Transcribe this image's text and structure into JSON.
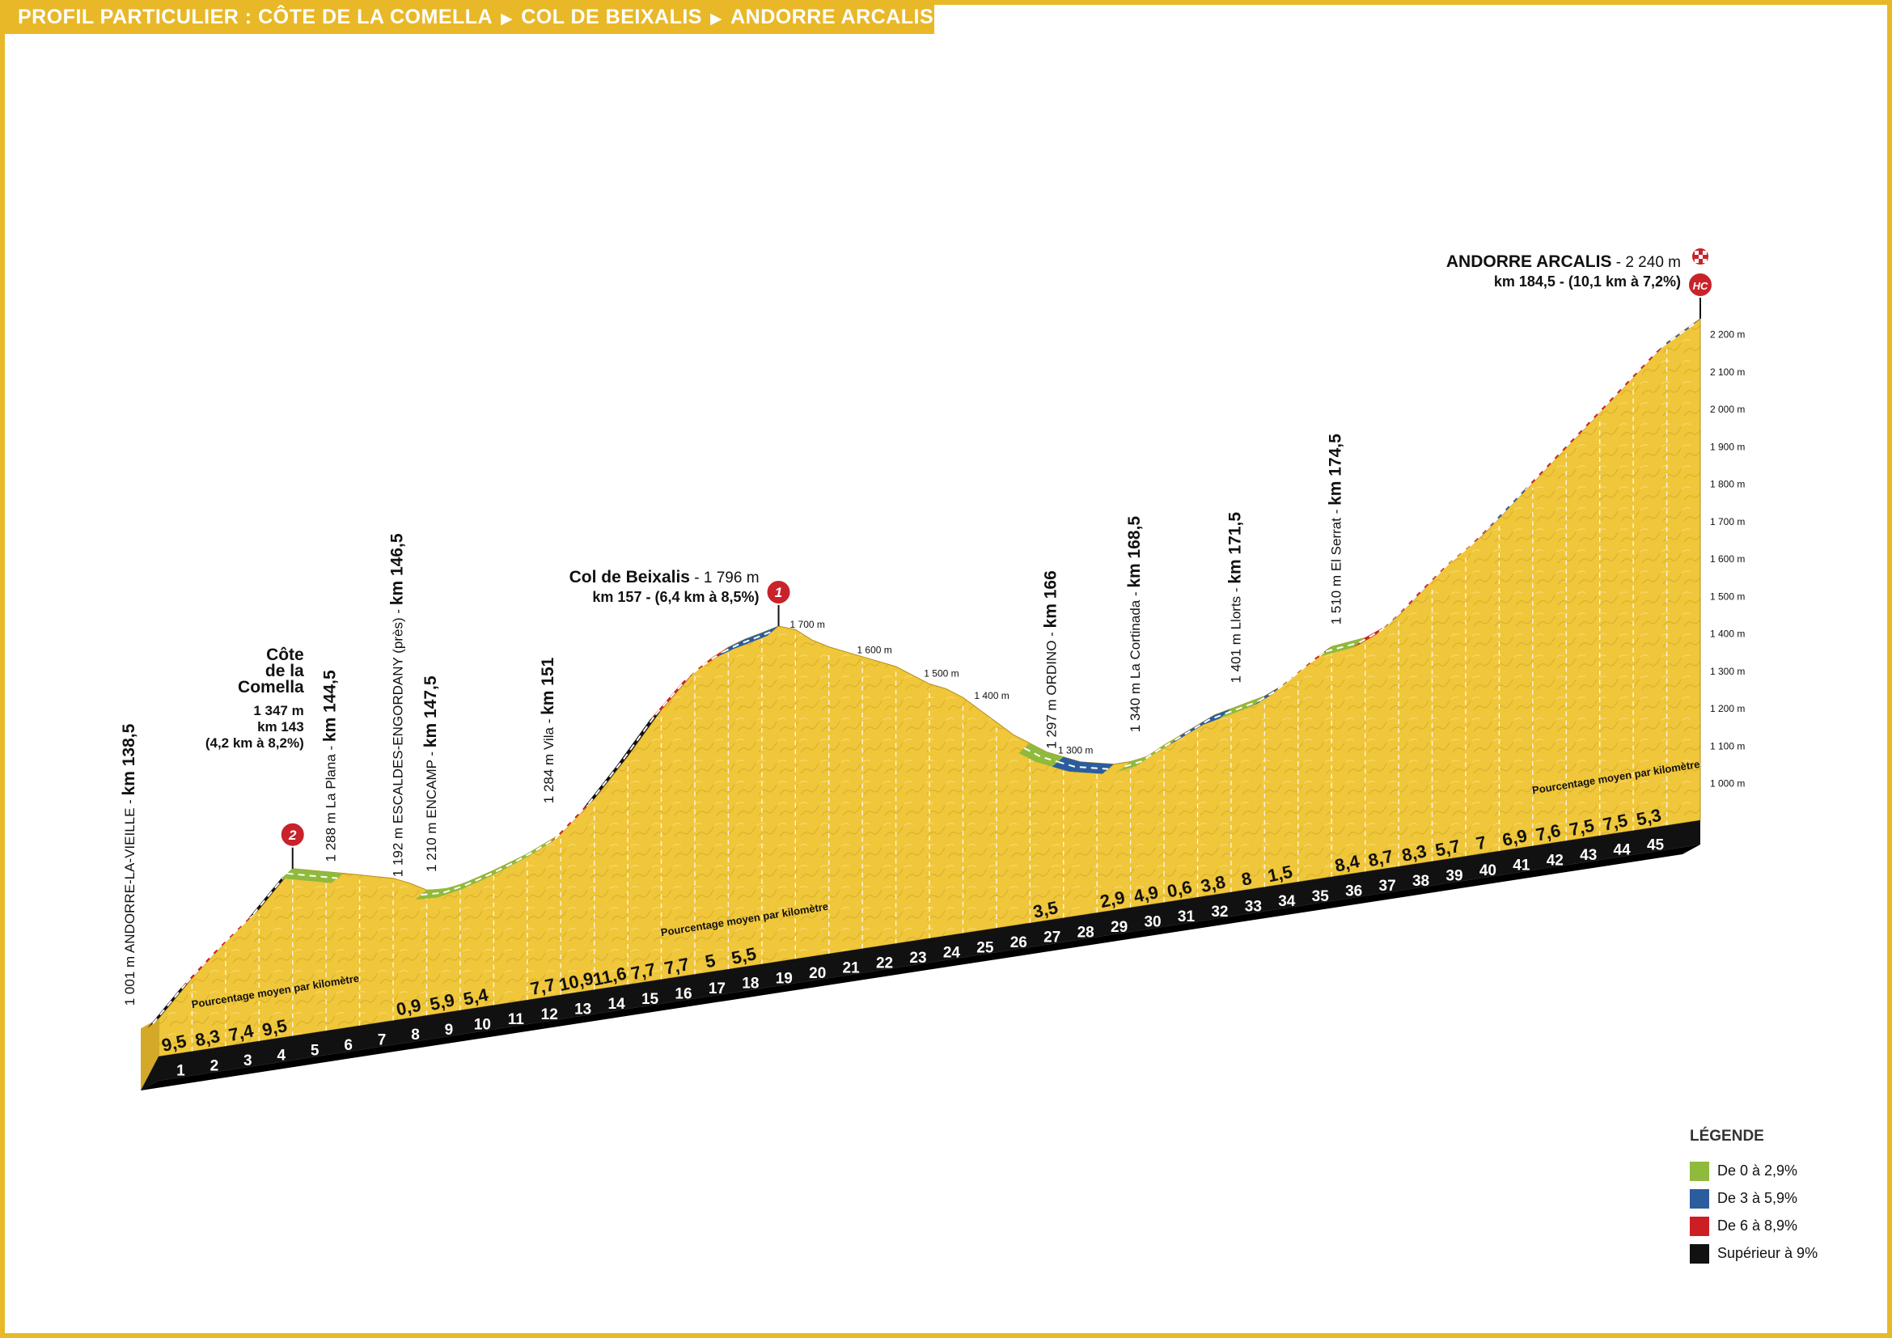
{
  "header": {
    "prefix": "PROFIL PARTICULIER :",
    "parts": [
      "CÔTE DE LA COMELLA",
      "COL DE BEIXALIS",
      "ANDORRE ARCALIS"
    ]
  },
  "colors": {
    "frame": "#e8b829",
    "terrain": "#f0c63a",
    "terrain_dark": "#c9a224",
    "green": "#8fba3c",
    "blue": "#2b5d9e",
    "red": "#cc1f24",
    "black": "#111111",
    "badge": "#c8232b"
  },
  "chart_data": {
    "type": "area",
    "x": [
      0,
      0.5,
      1,
      1.5,
      2,
      2.5,
      3,
      3.5,
      4,
      4.5,
      5,
      5.5,
      6,
      6.5,
      7,
      7.5,
      8,
      8.5,
      9,
      9.5,
      10,
      10.5,
      11,
      11.5,
      12,
      12.5,
      13,
      13.5,
      14,
      14.5,
      15,
      15.5,
      16,
      16.5,
      17,
      17.5,
      18,
      18.5,
      19,
      19.5,
      20,
      20.5,
      21,
      21.5,
      22,
      22.5,
      23,
      23.5,
      24,
      24.5,
      25,
      25.5,
      26,
      26.5,
      27,
      27.5,
      28,
      28.5,
      29,
      29.5,
      30,
      30.5,
      31,
      31.5,
      32,
      32.5,
      33,
      33.5,
      34,
      34.5,
      35,
      35.5,
      36,
      36.5,
      37,
      37.5,
      38,
      38.5,
      39,
      39.5,
      40,
      40.5,
      41,
      41.5,
      42,
      42.5,
      43,
      43.5,
      44,
      44.5,
      45,
      45.5,
      46
    ],
    "y": [
      1001,
      1048,
      1095,
      1137,
      1178,
      1215,
      1252,
      1300,
      1347,
      1336,
      1325,
      1314,
      1303,
      1291,
      1280,
      1260,
      1235,
      1230,
      1235,
      1247,
      1260,
      1275,
      1290,
      1310,
      1330,
      1370,
      1410,
      1460,
      1510,
      1565,
      1620,
      1665,
      1710,
      1738,
      1760,
      1775,
      1785,
      1796,
      1780,
      1745,
      1720,
      1700,
      1680,
      1660,
      1640,
      1610,
      1580,
      1560,
      1530,
      1490,
      1450,
      1410,
      1380,
      1350,
      1330,
      1310,
      1300,
      1290,
      1290,
      1297,
      1320,
      1340,
      1360,
      1380,
      1390,
      1400,
      1410,
      1430,
      1460,
      1490,
      1515,
      1520,
      1525,
      1540,
      1570,
      1610,
      1650,
      1690,
      1720,
      1750,
      1790,
      1830,
      1870,
      1910,
      1950,
      1990,
      2030,
      2070,
      2110,
      2150,
      2190,
      2215,
      2240
    ],
    "ylim": [
      900,
      2300
    ],
    "xlim": [
      0,
      46
    ],
    "y_axis_ticks": [
      "1 000 m",
      "1 100 m",
      "1 200 m",
      "1 300 m",
      "1 400 m",
      "1 500 m",
      "1 600 m",
      "1 700 m",
      "1 800 m",
      "1 900 m",
      "2 000 m",
      "2 100 m",
      "2 200 m"
    ],
    "y_axis_tick_values": [
      1000,
      1100,
      1200,
      1300,
      1400,
      1500,
      1600,
      1700,
      1800,
      1900,
      2000,
      2100,
      2200
    ],
    "inner_altitudes": [
      {
        "x": 18.5,
        "label": "1 700 m"
      },
      {
        "x": 20.5,
        "label": "1 600 m"
      },
      {
        "x": 22.5,
        "label": "1 500 m"
      },
      {
        "x": 24,
        "label": "1 400 m"
      },
      {
        "x": 26.5,
        "label": "1 300 m"
      }
    ],
    "km_labels": [
      "1",
      "2",
      "3",
      "4",
      "5",
      "6",
      "7",
      "8",
      "9",
      "10",
      "11",
      "12",
      "13",
      "14",
      "15",
      "16",
      "17",
      "18",
      "19",
      "20",
      "21",
      "22",
      "23",
      "24",
      "25",
      "26",
      "27",
      "28",
      "29",
      "30",
      "31",
      "32",
      "33",
      "34",
      "35",
      "36",
      "37",
      "38",
      "39",
      "40",
      "41",
      "42",
      "43",
      "44",
      "45"
    ],
    "percentages": [
      {
        "km": 1,
        "text": "9,5"
      },
      {
        "km": 2,
        "text": "8,3"
      },
      {
        "km": 3,
        "text": "7,4"
      },
      {
        "km": 4,
        "text": "9,5"
      },
      {
        "km": 8,
        "text": "0,9"
      },
      {
        "km": 9,
        "text": "5,9"
      },
      {
        "km": 10,
        "text": "5,4"
      },
      {
        "km": 12,
        "text": "7,7"
      },
      {
        "km": 13,
        "text": "10,9"
      },
      {
        "km": 14,
        "text": "11,6"
      },
      {
        "km": 15,
        "text": "7,7"
      },
      {
        "km": 16,
        "text": "7,7"
      },
      {
        "km": 17,
        "text": "5"
      },
      {
        "km": 18,
        "text": "5,5"
      },
      {
        "km": 27,
        "text": "3,5"
      },
      {
        "km": 29,
        "text": "2,9"
      },
      {
        "km": 30,
        "text": "4,9"
      },
      {
        "km": 31,
        "text": "0,6"
      },
      {
        "km": 32,
        "text": "3,8"
      },
      {
        "km": 33,
        "text": "8"
      },
      {
        "km": 34,
        "text": "1,5"
      },
      {
        "km": 36,
        "text": "8,4"
      },
      {
        "km": 37,
        "text": "8,7"
      },
      {
        "km": 38,
        "text": "8,3"
      },
      {
        "km": 39,
        "text": "5,7"
      },
      {
        "km": 40,
        "text": "7"
      },
      {
        "km": 41,
        "text": "6,9"
      },
      {
        "km": 42,
        "text": "7,6"
      },
      {
        "km": 43,
        "text": "7,5"
      },
      {
        "km": 44,
        "text": "7,5"
      },
      {
        "km": 45,
        "text": "5,3"
      }
    ],
    "pct_captions": [
      {
        "x": 3.5,
        "text": "Pourcentage moyen par kilomètre"
      },
      {
        "x": 17.5,
        "text": "Pourcentage moyen par kilomètre"
      },
      {
        "x": 43.5,
        "text": "Pourcentage moyen par kilomètre"
      }
    ],
    "ridge_segments": [
      {
        "from": 0,
        "to": 1,
        "cls": "black"
      },
      {
        "from": 1,
        "to": 3,
        "cls": "red"
      },
      {
        "from": 3,
        "to": 4,
        "cls": "black"
      },
      {
        "from": 4,
        "to": 5.5,
        "cls": "green"
      },
      {
        "from": 8,
        "to": 12,
        "cls": "green"
      },
      {
        "from": 12,
        "to": 13,
        "cls": "red"
      },
      {
        "from": 13,
        "to": 15,
        "cls": "black"
      },
      {
        "from": 15,
        "to": 17,
        "cls": "red"
      },
      {
        "from": 17,
        "to": 18.5,
        "cls": "blue"
      },
      {
        "from": 26,
        "to": 27,
        "cls": "green"
      },
      {
        "from": 27,
        "to": 28.5,
        "cls": "blue"
      },
      {
        "from": 29,
        "to": 30.5,
        "cls": "green"
      },
      {
        "from": 30.5,
        "to": 32,
        "cls": "blue"
      },
      {
        "from": 32,
        "to": 33,
        "cls": "green"
      },
      {
        "from": 33,
        "to": 34,
        "cls": "blue"
      },
      {
        "from": 34,
        "to": 35,
        "cls": "red"
      },
      {
        "from": 35,
        "to": 36,
        "cls": "green"
      },
      {
        "from": 36,
        "to": 40,
        "cls": "red"
      },
      {
        "from": 40,
        "to": 41,
        "cls": "blue"
      },
      {
        "from": 41,
        "to": 45,
        "cls": "red"
      },
      {
        "from": 45,
        "to": 46,
        "cls": "blue"
      }
    ],
    "places": [
      {
        "x": 0,
        "main": "1 001 m  ANDORRE-LA-VIEILLE",
        "km": "km 138,5"
      },
      {
        "x": 6,
        "main": "1 288 m  La Plana",
        "km": "km 144,5"
      },
      {
        "x": 8,
        "main": "1 192 m ESCALDES-ENGORDANY (près)",
        "km": "km 146,5"
      },
      {
        "x": 9,
        "main": "1 210 m ENCAMP",
        "km": "km 147,5"
      },
      {
        "x": 12.5,
        "main": "1 284 m  Vila",
        "km": "km 151"
      },
      {
        "x": 27.5,
        "main": "1 297 m  ORDINO",
        "km": "km 166"
      },
      {
        "x": 30,
        "main": "1 340 m  La Cortinada",
        "km": "km 168,5"
      },
      {
        "x": 33,
        "main": "1 401 m  Llorts",
        "km": "km 171,5"
      },
      {
        "x": 36,
        "main": "1 510 m  El Serrat",
        "km": "km 174,5"
      }
    ],
    "summits": [
      {
        "x": 4,
        "badge": "2",
        "lines": [
          "Côte",
          "de la",
          "Comella",
          "1 347 m",
          "km 143",
          "(4,2 km à 8,2%)"
        ]
      },
      {
        "x": 18.5,
        "badge": "1",
        "name": "Col de Beixalis",
        "alt": " - 1 796 m",
        "line2": "km 157 - (6,4 km à 8,5%)"
      },
      {
        "x": 46,
        "badge": "HC",
        "name": "ANDORRE ARCALIS",
        "alt": " - 2 240 m",
        "line2": "km 184,5 - (10,1 km à 7,2%)"
      }
    ]
  },
  "legend": {
    "title": "LÉGENDE",
    "items": [
      {
        "label": "De 0 à 2,9%",
        "color": "#8fba3c"
      },
      {
        "label": "De 3 à 5,9%",
        "color": "#2b5d9e"
      },
      {
        "label": "De 6 à 8,9%",
        "color": "#cc1f24"
      },
      {
        "label": "Supérieur à 9%",
        "color": "#111111"
      }
    ]
  }
}
